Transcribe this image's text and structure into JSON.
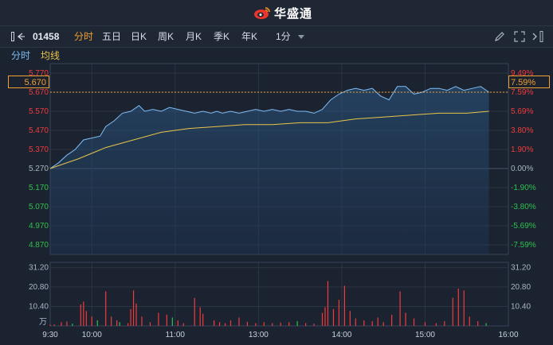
{
  "header": {
    "brand": "华盛通"
  },
  "toolbar": {
    "code": "01458",
    "tabs": [
      "分时",
      "五日",
      "日K",
      "周K",
      "月K",
      "季K",
      "年K"
    ],
    "interval": "1分",
    "active_tab": "分时"
  },
  "subtabs": {
    "timeshare": "分时",
    "avg_line": "均线"
  },
  "current": {
    "price": "5.670",
    "change_pct": "7.59%"
  },
  "colors": {
    "up": "#f23b3b",
    "down": "#2fc24d",
    "price_line": "#7fbdf5",
    "avg_line": "#e8c54a",
    "accent": "#f0a030"
  },
  "chart_data": {
    "type": "line",
    "price_axis": {
      "ticks": [
        "5.770",
        "5.670",
        "5.570",
        "5.470",
        "5.370",
        "5.270",
        "5.170",
        "5.070",
        "4.970",
        "4.870"
      ],
      "ylim": [
        4.82,
        5.82
      ],
      "prev_close": 5.27
    },
    "pct_axis": {
      "ticks": [
        "9.49%",
        "7.59%",
        "5.69%",
        "3.80%",
        "1.90%",
        "0.00%",
        "-1.90%",
        "-3.80%",
        "-5.69%",
        "-7.59%"
      ]
    },
    "volume_axis": {
      "ticks": [
        "31.20",
        "20.80",
        "10.40"
      ],
      "unit": "万",
      "max": 34
    },
    "x_ticks": [
      "9:30",
      "10:00",
      "11:00",
      "13:00",
      "14:00",
      "15:00",
      "16:00"
    ],
    "price_series": {
      "name": "",
      "points": [
        [
          0,
          5.27
        ],
        [
          6,
          5.3
        ],
        [
          12,
          5.34
        ],
        [
          18,
          5.37
        ],
        [
          24,
          5.42
        ],
        [
          30,
          5.43
        ],
        [
          36,
          5.44
        ],
        [
          40,
          5.49
        ],
        [
          46,
          5.52
        ],
        [
          52,
          5.56
        ],
        [
          58,
          5.57
        ],
        [
          64,
          5.6
        ],
        [
          68,
          5.57
        ],
        [
          74,
          5.58
        ],
        [
          80,
          5.57
        ],
        [
          86,
          5.59
        ],
        [
          92,
          5.58
        ],
        [
          98,
          5.57
        ],
        [
          104,
          5.56
        ],
        [
          110,
          5.57
        ],
        [
          116,
          5.56
        ],
        [
          120,
          5.57
        ],
        [
          124,
          5.56
        ],
        [
          130,
          5.57
        ],
        [
          136,
          5.56
        ],
        [
          142,
          5.57
        ],
        [
          148,
          5.58
        ],
        [
          154,
          5.57
        ],
        [
          160,
          5.58
        ],
        [
          166,
          5.57
        ],
        [
          172,
          5.58
        ],
        [
          178,
          5.57
        ],
        [
          184,
          5.57
        ],
        [
          190,
          5.56
        ],
        [
          196,
          5.58
        ],
        [
          202,
          5.63
        ],
        [
          208,
          5.66
        ],
        [
          214,
          5.68
        ],
        [
          220,
          5.69
        ],
        [
          226,
          5.68
        ],
        [
          232,
          5.69
        ],
        [
          238,
          5.65
        ],
        [
          244,
          5.63
        ],
        [
          250,
          5.7
        ],
        [
          256,
          5.7
        ],
        [
          262,
          5.66
        ],
        [
          268,
          5.67
        ],
        [
          274,
          5.69
        ],
        [
          280,
          5.69
        ],
        [
          286,
          5.68
        ],
        [
          292,
          5.7
        ],
        [
          298,
          5.68
        ],
        [
          304,
          5.69
        ],
        [
          310,
          5.7
        ],
        [
          316,
          5.67
        ]
      ]
    },
    "avg_series": {
      "name": "",
      "points": [
        [
          0,
          5.27
        ],
        [
          20,
          5.32
        ],
        [
          40,
          5.38
        ],
        [
          60,
          5.42
        ],
        [
          80,
          5.46
        ],
        [
          100,
          5.48
        ],
        [
          120,
          5.49
        ],
        [
          140,
          5.5
        ],
        [
          160,
          5.5
        ],
        [
          180,
          5.51
        ],
        [
          200,
          5.51
        ],
        [
          220,
          5.53
        ],
        [
          240,
          5.54
        ],
        [
          260,
          5.55
        ],
        [
          280,
          5.56
        ],
        [
          300,
          5.56
        ],
        [
          316,
          5.57
        ]
      ]
    },
    "volume": [
      [
        0,
        0.6,
        "up"
      ],
      [
        3,
        0.8,
        "up"
      ],
      [
        8,
        2.0,
        "up"
      ],
      [
        12,
        2.4,
        "up"
      ],
      [
        16,
        1.2,
        "down"
      ],
      [
        22,
        11.5,
        "up"
      ],
      [
        24,
        13.0,
        "up"
      ],
      [
        26,
        8.0,
        "up"
      ],
      [
        30,
        5.0,
        "up"
      ],
      [
        34,
        3.0,
        "down"
      ],
      [
        40,
        18.5,
        "up"
      ],
      [
        44,
        5.0,
        "up"
      ],
      [
        48,
        3.0,
        "up"
      ],
      [
        50,
        2.0,
        "down"
      ],
      [
        56,
        1.5,
        "up"
      ],
      [
        58,
        9.0,
        "up"
      ],
      [
        60,
        19.0,
        "up"
      ],
      [
        62,
        12.0,
        "up"
      ],
      [
        66,
        5.0,
        "up"
      ],
      [
        72,
        2.0,
        "up"
      ],
      [
        78,
        7.0,
        "up"
      ],
      [
        84,
        6.0,
        "up"
      ],
      [
        88,
        4.5,
        "down"
      ],
      [
        92,
        3.0,
        "up"
      ],
      [
        96,
        1.5,
        "up"
      ],
      [
        104,
        15.0,
        "up"
      ],
      [
        108,
        10.0,
        "up"
      ],
      [
        110,
        6.5,
        "up"
      ],
      [
        118,
        3.0,
        "up"
      ],
      [
        122,
        2.0,
        "up"
      ],
      [
        126,
        1.5,
        "up"
      ],
      [
        130,
        3.0,
        "up"
      ],
      [
        136,
        4.5,
        "up"
      ],
      [
        142,
        2.2,
        "up"
      ],
      [
        148,
        1.5,
        "up"
      ],
      [
        154,
        2.0,
        "up"
      ],
      [
        160,
        1.5,
        "up"
      ],
      [
        166,
        1.8,
        "up"
      ],
      [
        172,
        2.0,
        "up"
      ],
      [
        178,
        2.5,
        "down"
      ],
      [
        184,
        1.5,
        "up"
      ],
      [
        190,
        1.2,
        "up"
      ],
      [
        196,
        7.0,
        "up"
      ],
      [
        198,
        10.0,
        "up"
      ],
      [
        200,
        24.0,
        "up"
      ],
      [
        204,
        9.0,
        "up"
      ],
      [
        208,
        14.0,
        "up"
      ],
      [
        212,
        21.5,
        "up"
      ],
      [
        216,
        8.0,
        "up"
      ],
      [
        220,
        4.0,
        "up"
      ],
      [
        226,
        3.0,
        "up"
      ],
      [
        232,
        2.5,
        "up"
      ],
      [
        236,
        4.5,
        "up"
      ],
      [
        240,
        2.0,
        "up"
      ],
      [
        246,
        6.0,
        "up"
      ],
      [
        252,
        18.5,
        "up"
      ],
      [
        256,
        7.0,
        "up"
      ],
      [
        262,
        4.0,
        "up"
      ],
      [
        270,
        2.0,
        "up"
      ],
      [
        278,
        1.5,
        "up"
      ],
      [
        284,
        2.5,
        "up"
      ],
      [
        290,
        15.0,
        "up"
      ],
      [
        294,
        20.0,
        "up"
      ],
      [
        298,
        19.0,
        "up"
      ],
      [
        302,
        5.0,
        "up"
      ],
      [
        308,
        2.5,
        "up"
      ],
      [
        314,
        1.5,
        "down"
      ]
    ]
  }
}
